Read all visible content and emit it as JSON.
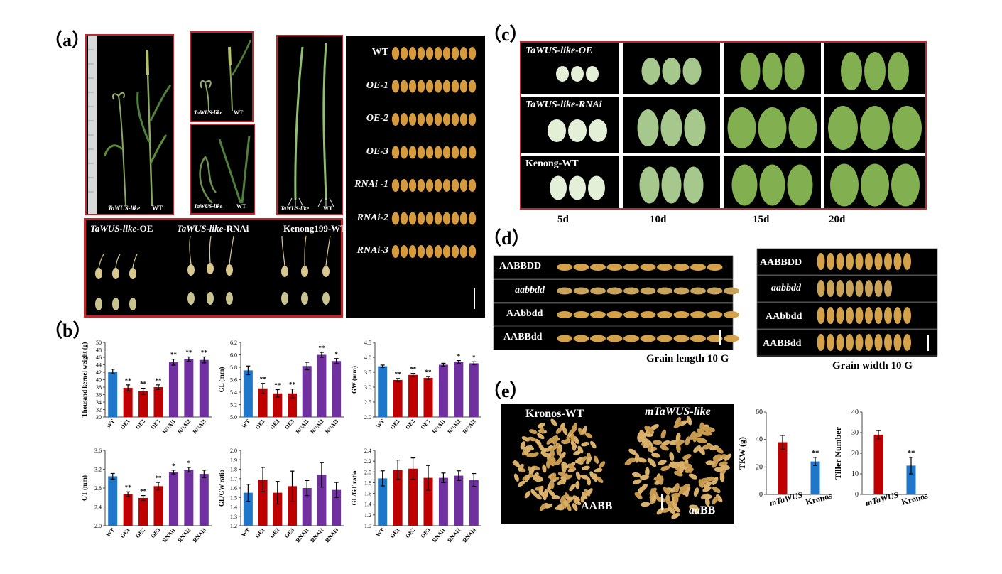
{
  "panels": {
    "a": "（a）",
    "b": "（b）",
    "c": "（c）",
    "d": "（d）",
    "e": "（e）"
  },
  "a_plants": {
    "p1_left": "TaWUS-like",
    "p1_right": "WT",
    "p2_left": "TaWUS-like",
    "p2_right": "WT",
    "p3_left": "TaWUS-like",
    "p3_right": "WT",
    "p4_left": "TaWUS-like",
    "p4_right": "WT"
  },
  "a_germ": {
    "oe_italic": "TaWUS-like",
    "oe_suffix": "-OE",
    "rnai_italic": "TaWUS-like",
    "rnai_suffix": "-RNAi",
    "wt": "Kenong199-WT"
  },
  "a_grains": {
    "rows": [
      "WT",
      "OE-1",
      "OE-2",
      "OE-3",
      "RNAi -1",
      "RNAi-2",
      "RNAi-3"
    ]
  },
  "c_dev": {
    "rows": [
      "TaWUS-like-OE",
      "TaWUS-like-RNAi",
      "Kenong-WT"
    ],
    "days": [
      "5d",
      "10d",
      "15d",
      "20d"
    ]
  },
  "d_grains": {
    "rows": [
      "AABBDD",
      "aabbdd",
      "AAbbdd",
      "AABBdd"
    ],
    "length_caption": "Grain length   10 G",
    "width_caption": "Grain width   10 G"
  },
  "e_photo": {
    "left_title": "Kronos-WT",
    "right_title": "mTaWUS-like",
    "left_genotype": "AABB",
    "right_genotype_italic": "aa",
    "right_genotype_rest": "BB"
  },
  "colors": {
    "wt": "#1f77c9",
    "oe": "#c00000",
    "rnai": "#7030a0",
    "frame": "#c0272d"
  },
  "chart_data": [
    {
      "type": "bar",
      "ylabel": "Thousand kernel weight (g)",
      "categories": [
        "WT",
        "OE1",
        "OE2",
        "OE3",
        "RNAi1",
        "RNAi2",
        "RNAi3"
      ],
      "values": [
        42.2,
        37.8,
        36.9,
        38.0,
        44.7,
        45.5,
        45.3
      ],
      "errors": [
        0.6,
        0.8,
        0.8,
        0.6,
        0.8,
        0.6,
        0.8
      ],
      "significance": [
        "",
        "**",
        "**",
        "**",
        "**",
        "**",
        "**"
      ],
      "ylim": [
        30,
        50
      ],
      "yticks": [
        "30",
        "32",
        "34",
        "36",
        "38",
        "40",
        "42",
        "44",
        "46",
        "48",
        "50"
      ]
    },
    {
      "type": "bar",
      "ylabel": "GL (mm)",
      "categories": [
        "WT",
        "OE1",
        "OE2",
        "OE3",
        "RNAi1",
        "RNAi2",
        "RNAi3"
      ],
      "values": [
        5.75,
        5.46,
        5.38,
        5.38,
        5.82,
        6.0,
        5.9
      ],
      "errors": [
        0.07,
        0.08,
        0.06,
        0.07,
        0.06,
        0.04,
        0.04
      ],
      "significance": [
        "",
        "**",
        "**",
        "**",
        "",
        "**",
        "*"
      ],
      "ylim": [
        5.0,
        6.2
      ],
      "yticks": [
        "5.0",
        "5.2",
        "5.4",
        "5.6",
        "5.8",
        "6.0",
        "6.2"
      ]
    },
    {
      "type": "bar",
      "ylabel": "GW (mm)",
      "categories": [
        "WT",
        "OE1",
        "OE2",
        "OE3",
        "RNAi1",
        "RNAi2",
        "RNAi3"
      ],
      "values": [
        3.7,
        3.24,
        3.41,
        3.31,
        3.75,
        3.84,
        3.8
      ],
      "errors": [
        0.04,
        0.05,
        0.05,
        0.05,
        0.05,
        0.05,
        0.05
      ],
      "significance": [
        "",
        "**",
        "**",
        "**",
        "",
        "*",
        "*"
      ],
      "ylim": [
        2.0,
        4.5
      ],
      "yticks": [
        "2.0",
        "2.5",
        "3.0",
        "3.5",
        "4.0",
        "4.5"
      ]
    },
    {
      "type": "bar",
      "ylabel": "GT (mm)",
      "categories": [
        "WT",
        "OE1",
        "OE2",
        "OE3",
        "RNAi1",
        "RNAi2",
        "RNAi3"
      ],
      "values": [
        3.05,
        2.67,
        2.59,
        2.84,
        3.14,
        3.19,
        3.1
      ],
      "errors": [
        0.06,
        0.05,
        0.05,
        0.08,
        0.04,
        0.05,
        0.08
      ],
      "significance": [
        "",
        "**",
        "**",
        "**",
        "*",
        "*",
        ""
      ],
      "ylim": [
        2.0,
        3.6
      ],
      "yticks": [
        "2.0",
        "2.4",
        "2.8",
        "3.2",
        "3.6"
      ]
    },
    {
      "type": "bar",
      "ylabel": "GL/GW ratio",
      "categories": [
        "WT",
        "OE1",
        "OE2",
        "OE3",
        "RNAi1",
        "RNAi2",
        "RNAi3"
      ],
      "values": [
        1.55,
        1.69,
        1.55,
        1.62,
        1.6,
        1.74,
        1.58
      ],
      "errors": [
        0.09,
        0.13,
        0.12,
        0.16,
        0.08,
        0.13,
        0.08
      ],
      "significance": [
        "",
        "",
        "",
        "",
        "",
        "",
        ""
      ],
      "ylim": [
        1.2,
        2.0
      ],
      "yticks": [
        "1.2",
        "1.3",
        "1.4",
        "1.5",
        "1.6",
        "1.7",
        "1.8",
        "1.9",
        "2.0"
      ]
    },
    {
      "type": "bar",
      "ylabel": "GL/GT ratio",
      "categories": [
        "WT",
        "OE1",
        "OE2",
        "OE3",
        "RNAi1",
        "RNAi2",
        "RNAi3"
      ],
      "values": [
        1.88,
        2.04,
        2.06,
        1.89,
        1.89,
        1.93,
        1.85
      ],
      "errors": [
        0.14,
        0.18,
        0.2,
        0.23,
        0.09,
        0.09,
        0.12
      ],
      "significance": [
        "",
        "",
        "",
        "",
        "",
        "",
        ""
      ],
      "ylim": [
        1.0,
        2.4
      ],
      "yticks": [
        "1.0",
        "1.2",
        "1.4",
        "1.6",
        "1.8",
        "2.0",
        "2.2",
        "2.4"
      ]
    },
    {
      "type": "bar",
      "ylabel": "TKW (g)",
      "categories": [
        "mTaWUS",
        "Kronos"
      ],
      "values": [
        38,
        24
      ],
      "errors": [
        5,
        3
      ],
      "significance": [
        "",
        "**"
      ],
      "ylim": [
        0,
        60
      ],
      "yticks": [
        "0",
        "20",
        "40",
        "60"
      ]
    },
    {
      "type": "bar",
      "ylabel": "Tiller Number",
      "categories": [
        "mTaWUS",
        "Kronos"
      ],
      "values": [
        29,
        14
      ],
      "errors": [
        2,
        4
      ],
      "significance": [
        "",
        "**"
      ],
      "ylim": [
        0,
        40
      ],
      "yticks": [
        "0",
        "10",
        "20",
        "30",
        "40"
      ]
    }
  ]
}
